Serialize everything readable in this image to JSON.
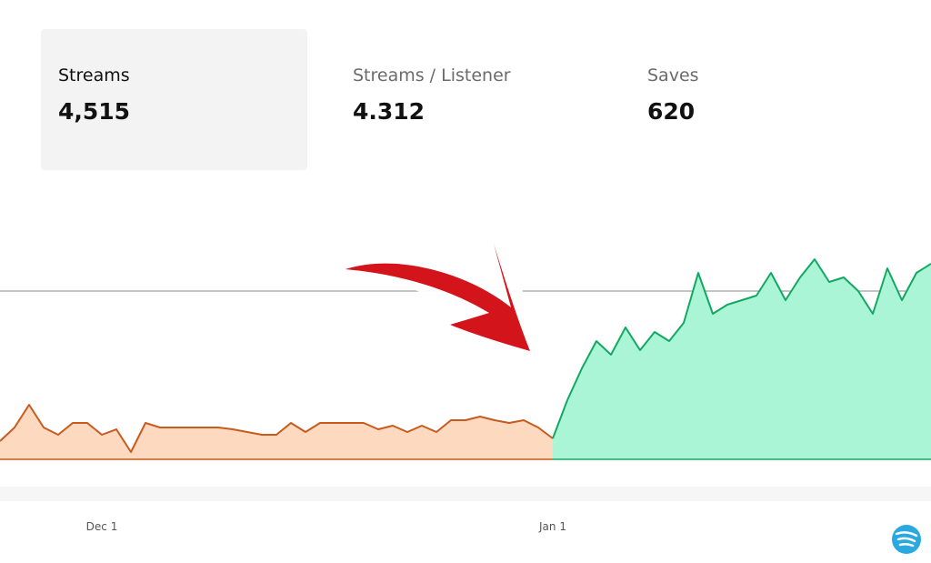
{
  "stats": [
    {
      "label": "Streams",
      "value": "4,515"
    },
    {
      "label": "Streams / Listener",
      "value": "4.312"
    },
    {
      "label": "Saves",
      "value": "620"
    }
  ],
  "chart_data": {
    "type": "area",
    "categories": [
      null,
      null,
      null,
      null,
      null,
      null,
      null,
      "Dec 1",
      null,
      null,
      null,
      null,
      null,
      null,
      null,
      null,
      null,
      null,
      null,
      null,
      null,
      null,
      null,
      null,
      null,
      null,
      null,
      null,
      null,
      null,
      null,
      null,
      null,
      null,
      null,
      null,
      null,
      null,
      "Jan 1",
      null,
      null,
      null,
      null,
      null,
      null,
      null,
      null,
      null,
      null,
      null,
      null,
      null,
      null,
      null,
      null,
      null,
      null,
      null,
      null,
      null,
      null,
      null,
      null,
      null,
      null
    ],
    "series": [
      {
        "color": "#c85a1e",
        "values": [
          20,
          35,
          60,
          35,
          27,
          40,
          40,
          27,
          33,
          8,
          40,
          35,
          35,
          35,
          35,
          35,
          33,
          30,
          27,
          27,
          40,
          30,
          40,
          40,
          40,
          40,
          33,
          37,
          30,
          37,
          30,
          43,
          43,
          47,
          43,
          40,
          43,
          35,
          23,
          null,
          null,
          null,
          null,
          null,
          null,
          null,
          null,
          null,
          null,
          null,
          null,
          null,
          null,
          null,
          null,
          null,
          null,
          null,
          null,
          null,
          null,
          null,
          null,
          null,
          null
        ]
      },
      {
        "color": "#13a862",
        "values": [
          null,
          null,
          null,
          null,
          null,
          null,
          null,
          null,
          null,
          null,
          null,
          null,
          null,
          null,
          null,
          null,
          null,
          null,
          null,
          null,
          null,
          null,
          null,
          null,
          null,
          null,
          null,
          null,
          null,
          null,
          null,
          null,
          null,
          null,
          null,
          null,
          null,
          null,
          23,
          65,
          100,
          130,
          115,
          145,
          120,
          140,
          130,
          150,
          205,
          160,
          170,
          175,
          180,
          205,
          175,
          200,
          220,
          195,
          200,
          185,
          160,
          210,
          175,
          205,
          215
        ]
      }
    ]
  }
}
